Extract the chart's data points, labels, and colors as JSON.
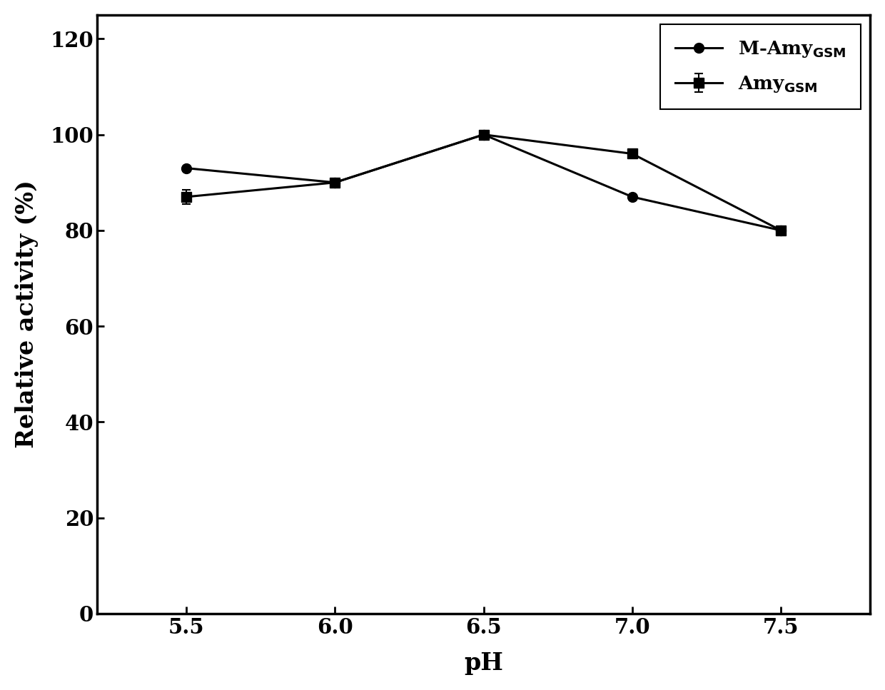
{
  "x": [
    5.5,
    6.0,
    6.5,
    7.0,
    7.5
  ],
  "amy_gsm_y": [
    87,
    90,
    100,
    96,
    80
  ],
  "amy_gsm_yerr_upper": [
    1.5,
    0.5,
    0.5,
    0.5,
    0.5
  ],
  "amy_gsm_yerr_lower": [
    1.5,
    0.5,
    0.5,
    0.5,
    0.5
  ],
  "m_amy_gsm_y": [
    93,
    90,
    100,
    87,
    80
  ],
  "xlabel": "pH",
  "ylabel": "Relative activity (%)",
  "xlim": [
    5.2,
    7.8
  ],
  "ylim": [
    0,
    125
  ],
  "yticks": [
    0,
    20,
    40,
    60,
    80,
    100,
    120
  ],
  "xticks": [
    5.5,
    6.0,
    6.5,
    7.0,
    7.5
  ],
  "xtick_labels": [
    "5.5",
    "6.0",
    "6.5",
    "7.0",
    "7.5"
  ],
  "line_color": "#000000",
  "background_color": "#ffffff",
  "legend_loc": "upper right",
  "marker_amy": "s",
  "marker_m_amy": "o",
  "markersize": 10,
  "linewidth": 2.2,
  "fontsize_ticks": 21,
  "fontsize_labels": 24,
  "fontsize_legend": 19
}
